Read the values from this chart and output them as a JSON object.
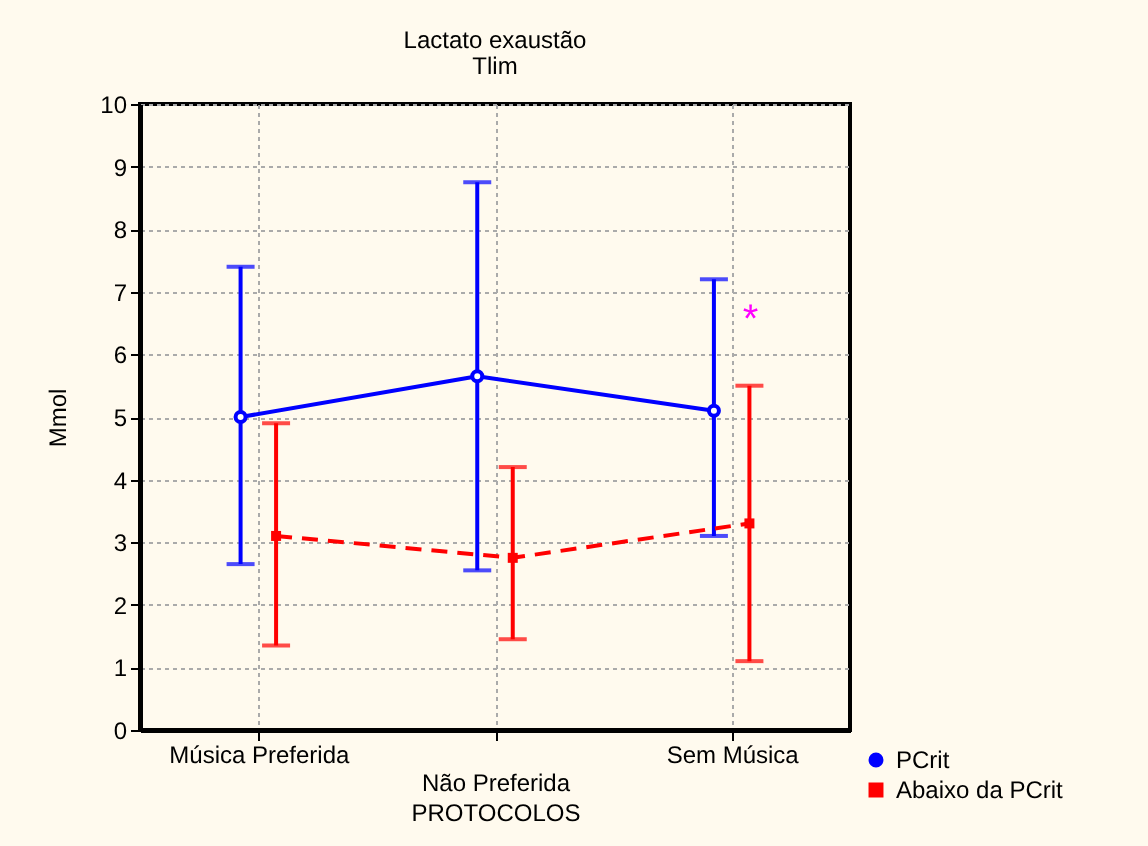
{
  "chart_data": {
    "type": "line",
    "title": "Lactato exaustão",
    "subtitle": "Tlim",
    "xlabel": "PROTOCOLOS",
    "ylabel": "Mmol",
    "categories": [
      "Música Preferida",
      "Não Preferida",
      "Sem Música"
    ],
    "series": [
      {
        "name": "PCrit",
        "color": "#0000ff",
        "values": [
          5.0,
          5.65,
          5.1
        ],
        "errors": [
          [
            2.65,
            7.4
          ],
          [
            2.55,
            8.75
          ],
          [
            3.1,
            7.2
          ]
        ],
        "marker": "circle",
        "line_style": "solid"
      },
      {
        "name": "Abaixo da PCrit",
        "color": "#ff0000",
        "values": [
          3.1,
          2.75,
          3.3
        ],
        "errors": [
          [
            1.35,
            4.9
          ],
          [
            1.45,
            4.2
          ],
          [
            1.1,
            5.5
          ]
        ],
        "marker": "square",
        "line_style": "dashed"
      }
    ],
    "annotations": [
      "*"
    ],
    "ylim": [
      0,
      10
    ],
    "yticks": [
      0,
      1,
      2,
      3,
      4,
      5,
      6,
      7,
      8,
      9,
      10
    ],
    "grid": true,
    "legend": "bottom right"
  }
}
